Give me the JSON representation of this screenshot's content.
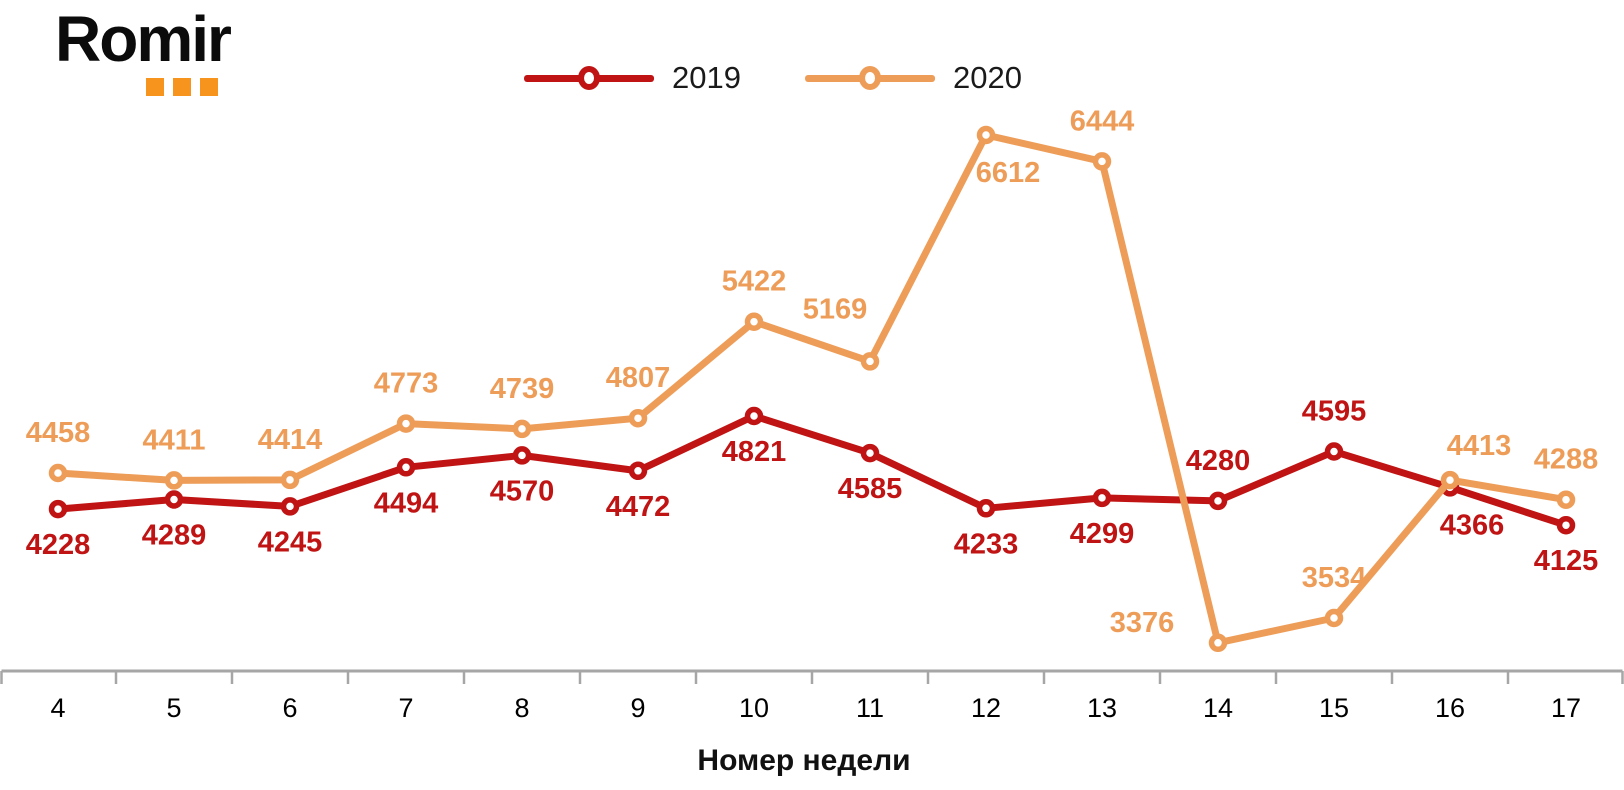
{
  "logo": {
    "text": "Romir",
    "dot_color": "#F7941D"
  },
  "legend": {
    "position": "top-center"
  },
  "chart_data": {
    "type": "line",
    "title": "",
    "xlabel": "Номер недели",
    "ylabel": "",
    "x": [
      "4",
      "5",
      "6",
      "7",
      "8",
      "9",
      "10",
      "11",
      "12",
      "13",
      "14",
      "15",
      "16",
      "17"
    ],
    "grid": false,
    "legend_position": "top-center",
    "axis_color": "#A6A6A6",
    "tick_label_color": "#000000",
    "series": [
      {
        "name": "2019",
        "color": "#C01414",
        "values": [
          4228,
          4289,
          4245,
          4494,
          4570,
          4472,
          4821,
          4585,
          4233,
          4299,
          4280,
          4595,
          4366,
          4125
        ],
        "label_sides": [
          "below",
          "below",
          "below",
          "below",
          "below",
          "below",
          "below",
          "below",
          "below",
          "below",
          "above",
          "above",
          "below-right",
          "below"
        ]
      },
      {
        "name": "2020",
        "color": "#EE9D58",
        "values": [
          4458,
          4411,
          4414,
          4773,
          4739,
          4807,
          5422,
          5169,
          6612,
          6444,
          3376,
          3534,
          4413,
          4288
        ],
        "label_sides": [
          "above",
          "above",
          "above",
          "above",
          "above",
          "above",
          "above",
          "above-left",
          "below-right",
          "above",
          "left",
          "above",
          "above-right",
          "above"
        ]
      }
    ]
  }
}
